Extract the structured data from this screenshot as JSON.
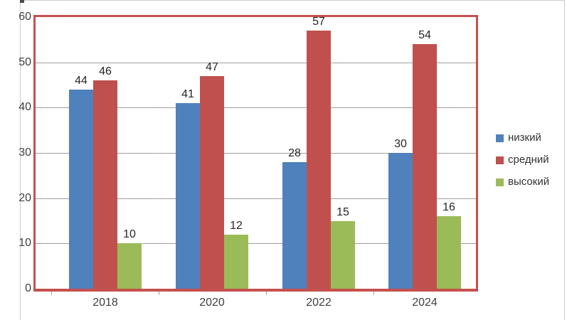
{
  "chart_data": {
    "type": "bar",
    "title": "",
    "categories": [
      "2018",
      "2020",
      "2022",
      "2024"
    ],
    "series": [
      {
        "name": "низкий",
        "color": "#4f81bd",
        "values": [
          44,
          41,
          28,
          30
        ]
      },
      {
        "name": "средний",
        "color": "#c0504d",
        "values": [
          46,
          47,
          57,
          54
        ]
      },
      {
        "name": "высокий",
        "color": "#9bbb59",
        "values": [
          10,
          12,
          15,
          16
        ]
      }
    ],
    "xlabel": "",
    "ylabel": "",
    "ylim": [
      0,
      60
    ],
    "yticks": [
      0,
      10,
      20,
      30,
      40,
      50,
      60
    ],
    "grid": true,
    "data_labels": true,
    "legend_position": "right",
    "colors": {
      "plot_border": "#c5514e",
      "gridline": "#9e9e9e",
      "tick_label": "#3f3f3f",
      "data_label": "#262626"
    }
  }
}
